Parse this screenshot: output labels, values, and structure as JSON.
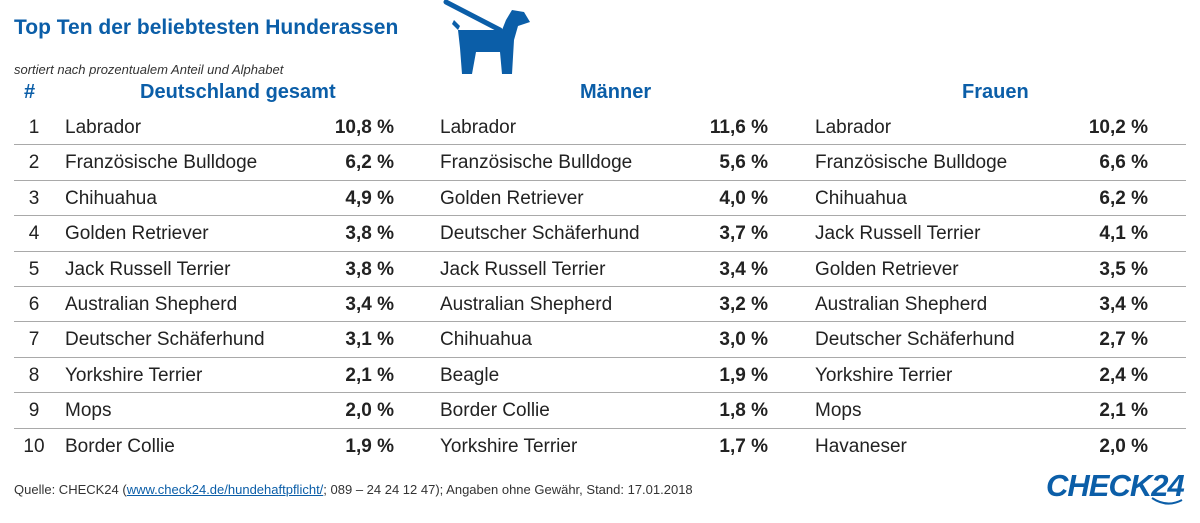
{
  "title": "Top Ten der beliebtesten Hunderassen",
  "subtitle": "sortiert nach prozentualem Anteil und Alphabet",
  "icon": "dog-on-leash-icon",
  "accent_color": "#0b5ea8",
  "headers": {
    "rank": "#",
    "total": "Deutschland gesamt",
    "men": "Männer",
    "women": "Frauen"
  },
  "chart_data": {
    "type": "table",
    "title": "Top Ten der beliebtesten Hunderassen",
    "columns": [
      "#",
      "Deutschland gesamt",
      "Männer",
      "Frauen"
    ],
    "rows": [
      {
        "rank": "1",
        "total": {
          "breed": "Labrador",
          "pct": "10,8 %"
        },
        "men": {
          "breed": "Labrador",
          "pct": "11,6 %"
        },
        "women": {
          "breed": "Labrador",
          "pct": "10,2 %"
        }
      },
      {
        "rank": "2",
        "total": {
          "breed": "Französische Bulldoge",
          "pct": "6,2 %"
        },
        "men": {
          "breed": "Französische Bulldoge",
          "pct": "5,6 %"
        },
        "women": {
          "breed": "Französische Bulldoge",
          "pct": "6,6 %"
        }
      },
      {
        "rank": "3",
        "total": {
          "breed": "Chihuahua",
          "pct": "4,9 %"
        },
        "men": {
          "breed": "Golden Retriever",
          "pct": "4,0 %"
        },
        "women": {
          "breed": "Chihuahua",
          "pct": "6,2 %"
        }
      },
      {
        "rank": "4",
        "total": {
          "breed": "Golden Retriever",
          "pct": "3,8 %"
        },
        "men": {
          "breed": "Deutscher Schäferhund",
          "pct": "3,7 %"
        },
        "women": {
          "breed": "Jack Russell Terrier",
          "pct": "4,1 %"
        }
      },
      {
        "rank": "5",
        "total": {
          "breed": "Jack Russell Terrier",
          "pct": "3,8 %"
        },
        "men": {
          "breed": "Jack Russell Terrier",
          "pct": "3,4 %"
        },
        "women": {
          "breed": "Golden Retriever",
          "pct": "3,5 %"
        }
      },
      {
        "rank": "6",
        "total": {
          "breed": "Australian Shepherd",
          "pct": "3,4 %"
        },
        "men": {
          "breed": "Australian Shepherd",
          "pct": "3,2 %"
        },
        "women": {
          "breed": "Australian Shepherd",
          "pct": "3,4 %"
        }
      },
      {
        "rank": "7",
        "total": {
          "breed": "Deutscher Schäferhund",
          "pct": "3,1 %"
        },
        "men": {
          "breed": "Chihuahua",
          "pct": "3,0 %"
        },
        "women": {
          "breed": "Deutscher Schäferhund",
          "pct": "2,7 %"
        }
      },
      {
        "rank": "8",
        "total": {
          "breed": "Yorkshire Terrier",
          "pct": "2,1 %"
        },
        "men": {
          "breed": "Beagle",
          "pct": "1,9 %"
        },
        "women": {
          "breed": "Yorkshire Terrier",
          "pct": "2,4 %"
        }
      },
      {
        "rank": "9",
        "total": {
          "breed": "Mops",
          "pct": "2,0 %"
        },
        "men": {
          "breed": "Border Collie",
          "pct": "1,8 %"
        },
        "women": {
          "breed": "Mops",
          "pct": "2,1 %"
        }
      },
      {
        "rank": "10",
        "total": {
          "breed": "Border Collie",
          "pct": "1,9 %"
        },
        "men": {
          "breed": "Yorkshire Terrier",
          "pct": "1,7 %"
        },
        "women": {
          "breed": "Havaneser",
          "pct": "2,0 %"
        }
      }
    ]
  },
  "footer": {
    "prefix": "Quelle: CHECK24 (",
    "link": "www.check24.de/hundehaftpflicht/",
    "suffix": "; 089 – 24 24 12 47); Angaben ohne Gewähr, Stand: 17.01.2018"
  },
  "brand": "CHECK24"
}
